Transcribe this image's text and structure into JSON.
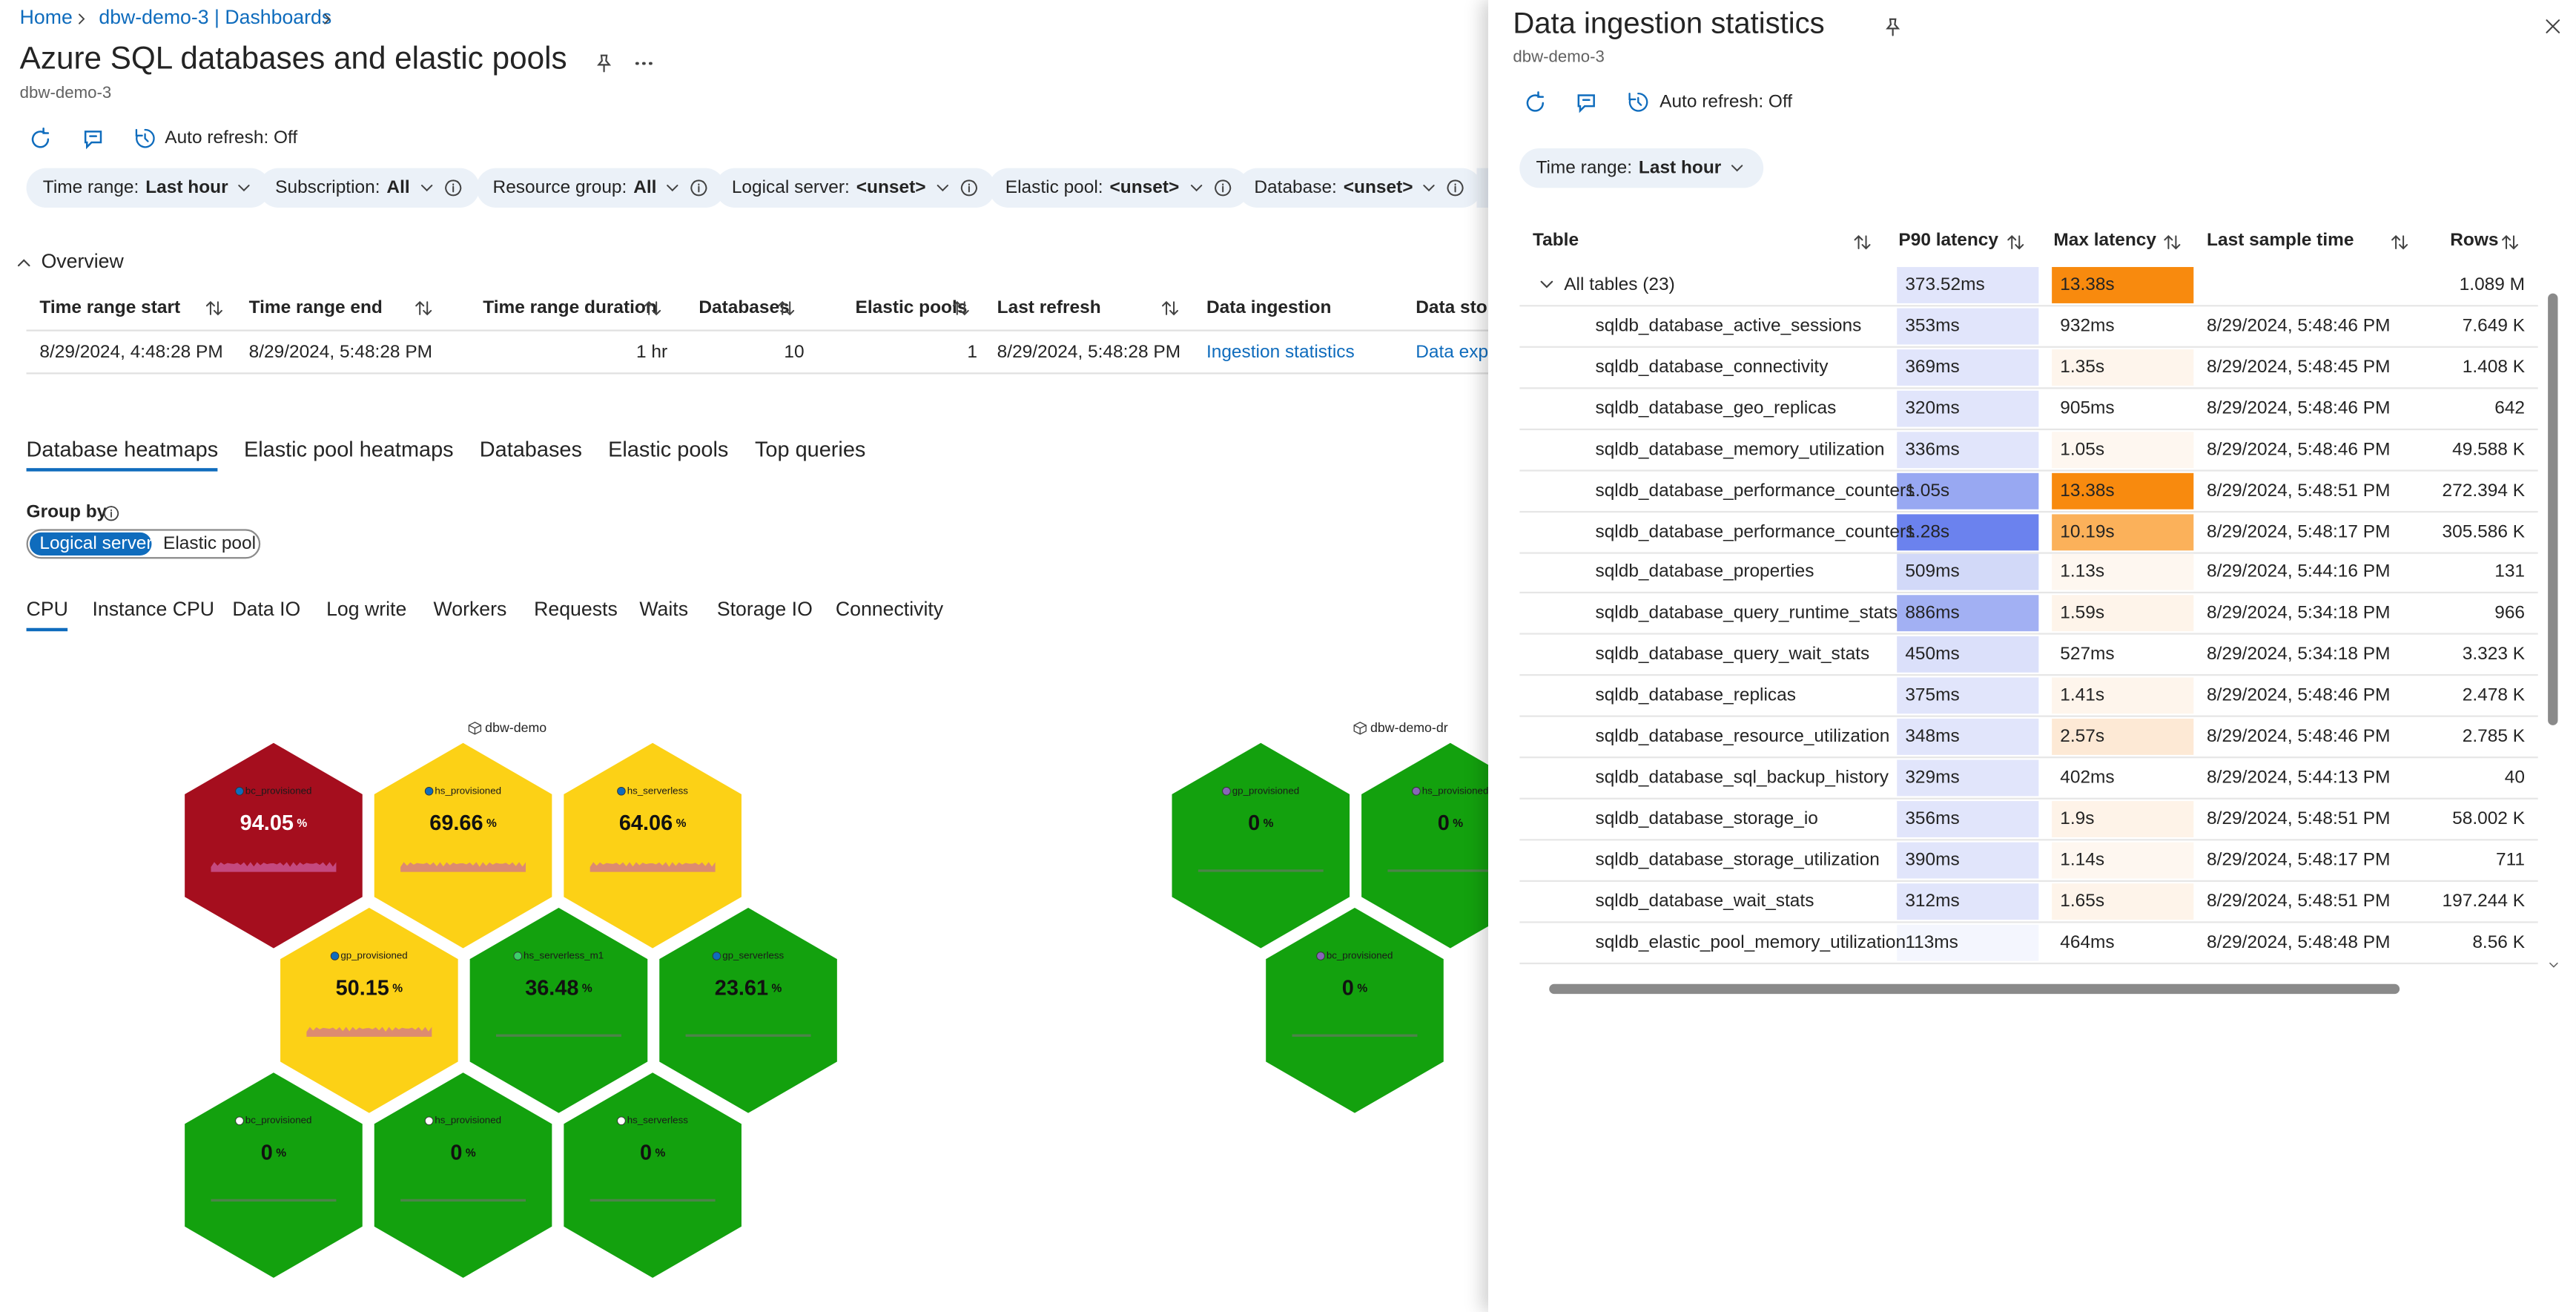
{
  "breadcrumb": [
    "Home",
    "dbw-demo-3 | Dashboards"
  ],
  "header": {
    "title": "Azure SQL databases and elastic pools",
    "subtitle": "dbw-demo-3"
  },
  "toolbar": {
    "auto_refresh": "Auto refresh: Off"
  },
  "filters": [
    {
      "label": "Time range:",
      "value": "Last hour"
    },
    {
      "label": "Subscription:",
      "value": "All"
    },
    {
      "label": "Resource group:",
      "value": "All"
    },
    {
      "label": "Logical server:",
      "value": "<unset>"
    },
    {
      "label": "Elastic pool:",
      "value": "<unset>"
    },
    {
      "label": "Database:",
      "value": "<unset>"
    }
  ],
  "overview": {
    "title": "Overview",
    "columns": [
      "Time range start",
      "Time range end",
      "Time range duration",
      "Databases",
      "Elastic pools",
      "Last refresh",
      "Data ingestion",
      "Data storage"
    ],
    "row": [
      "8/29/2024, 4:48:28 PM",
      "8/29/2024, 5:48:28 PM",
      "1 hr",
      10,
      1,
      "8/29/2024, 5:48:28 PM",
      "Ingestion statistics",
      "Data explorer"
    ]
  },
  "tabs": {
    "items": [
      "Database heatmaps",
      "Elastic pool heatmaps",
      "Databases",
      "Elastic pools",
      "Top queries"
    ],
    "selected": 0
  },
  "group_by": {
    "label": "Group by",
    "options": [
      "Logical server",
      "Elastic pool"
    ],
    "selected": 0
  },
  "metric_tabs": {
    "items": [
      "CPU",
      "Instance CPU",
      "Data IO",
      "Log write",
      "Workers",
      "Requests",
      "Waits",
      "Storage IO",
      "Connectivity"
    ],
    "selected": 0
  },
  "heatmaps": {
    "unit": "%",
    "servers": [
      {
        "name": "dbw-demo",
        "cells": [
          {
            "name": "bc_provisioned",
            "value": 94.05,
            "color": "#a50e1e",
            "dot": "#0f6cbd"
          },
          {
            "name": "hs_provisioned",
            "value": 69.66,
            "color": "#fcd116",
            "dot": "#0f6cbd"
          },
          {
            "name": "hs_serverless",
            "value": 64.06,
            "color": "#fcd116",
            "dot": "#0f6cbd"
          },
          {
            "name": "gp_provisioned",
            "value": 50.15,
            "color": "#fcd116",
            "dot": "#0f6cbd"
          },
          {
            "name": "hs_serverless_m1",
            "value": 36.48,
            "color": "#13a10e",
            "dot": "#3ccf6a"
          },
          {
            "name": "gp_serverless",
            "value": 23.61,
            "color": "#13a10e",
            "dot": "#0f6cbd"
          },
          {
            "name": "bc_provisioned",
            "value": 0,
            "color": "#13a10e",
            "dot": "#ffffff"
          },
          {
            "name": "hs_provisioned",
            "value": 0,
            "color": "#13a10e",
            "dot": "#ffffff"
          },
          {
            "name": "hs_serverless",
            "value": 0,
            "color": "#13a10e",
            "dot": "#ffffff"
          }
        ]
      },
      {
        "name": "dbw-demo-dr",
        "cells": [
          {
            "name": "gp_provisioned",
            "value": 0,
            "color": "#13a10e",
            "dot": "#8764b8"
          },
          {
            "name": "hs_provisioned",
            "value": 0,
            "color": "#13a10e",
            "dot": "#8764b8"
          },
          {
            "name": "bc_provisioned",
            "value": 0,
            "color": "#13a10e",
            "dot": "#8764b8"
          }
        ]
      }
    ]
  },
  "panel": {
    "title": "Data ingestion statistics",
    "subtitle": "dbw-demo-3",
    "auto_refresh": "Auto refresh: Off",
    "filter": {
      "label": "Time range:",
      "value": "Last hour"
    },
    "table": {
      "columns": [
        "Table",
        "P90 latency",
        "Max latency",
        "Last sample time",
        "Rows"
      ],
      "group": {
        "table": "All tables (23)",
        "p90": "373.52ms",
        "p90_color": "#e1e5fb",
        "max": "13.38s",
        "max_color": "#f88a0e",
        "rows": "1.089 M"
      },
      "rows": [
        {
          "table": "sqldb_database_active_sessions",
          "p90": "353ms",
          "p90_color": "#e1e5fb",
          "max": "932ms",
          "max_color": "#ffffff",
          "time": "8/29/2024, 5:48:46 PM",
          "rows": "7.649 K"
        },
        {
          "table": "sqldb_database_connectivity",
          "p90": "369ms",
          "p90_color": "#e1e5fb",
          "max": "1.35s",
          "max_color": "#fef5ec",
          "time": "8/29/2024, 5:48:45 PM",
          "rows": "1.408 K"
        },
        {
          "table": "sqldb_database_geo_replicas",
          "p90": "320ms",
          "p90_color": "#e1e5fb",
          "max": "905ms",
          "max_color": "#ffffff",
          "time": "8/29/2024, 5:48:46 PM",
          "rows": "642"
        },
        {
          "table": "sqldb_database_memory_utilization",
          "p90": "336ms",
          "p90_color": "#e1e5fb",
          "max": "1.05s",
          "max_color": "#fef7f0",
          "time": "8/29/2024, 5:48:46 PM",
          "rows": "49.588 K"
        },
        {
          "table": "sqldb_database_performance_counters",
          "p90": "1.05s",
          "p90_color": "#98a8f2",
          "max": "13.38s",
          "max_color": "#f88a0e",
          "time": "8/29/2024, 5:48:51 PM",
          "rows": "272.394 K"
        },
        {
          "table": "sqldb_database_performance_counters",
          "p90": "1.28s",
          "p90_color": "#6b82ee",
          "max": "10.19s",
          "max_color": "#fbb15a",
          "time": "8/29/2024, 5:48:17 PM",
          "rows": "305.586 K"
        },
        {
          "table": "sqldb_database_properties",
          "p90": "509ms",
          "p90_color": "#d2d9f8",
          "max": "1.13s",
          "max_color": "#fef7f0",
          "time": "8/29/2024, 5:44:16 PM",
          "rows": "131"
        },
        {
          "table": "sqldb_database_query_runtime_stats",
          "p90": "886ms",
          "p90_color": "#a2b0f3",
          "max": "1.59s",
          "max_color": "#fef4ea",
          "time": "8/29/2024, 5:34:18 PM",
          "rows": "966"
        },
        {
          "table": "sqldb_database_query_wait_stats",
          "p90": "450ms",
          "p90_color": "#dbe0fa",
          "max": "527ms",
          "max_color": "#ffffff",
          "time": "8/29/2024, 5:34:18 PM",
          "rows": "3.323 K"
        },
        {
          "table": "sqldb_database_replicas",
          "p90": "375ms",
          "p90_color": "#e1e5fb",
          "max": "1.41s",
          "max_color": "#fef5ec",
          "time": "8/29/2024, 5:48:46 PM",
          "rows": "2.478 K"
        },
        {
          "table": "sqldb_database_resource_utilization",
          "p90": "348ms",
          "p90_color": "#e1e5fb",
          "max": "2.57s",
          "max_color": "#fde9d5",
          "time": "8/29/2024, 5:48:46 PM",
          "rows": "2.785 K"
        },
        {
          "table": "sqldb_database_sql_backup_history",
          "p90": "329ms",
          "p90_color": "#e1e5fb",
          "max": "402ms",
          "max_color": "#ffffff",
          "time": "8/29/2024, 5:44:13 PM",
          "rows": "40"
        },
        {
          "table": "sqldb_database_storage_io",
          "p90": "356ms",
          "p90_color": "#e1e5fb",
          "max": "1.9s",
          "max_color": "#fef3e8",
          "time": "8/29/2024, 5:48:51 PM",
          "rows": "58.002 K"
        },
        {
          "table": "sqldb_database_storage_utilization",
          "p90": "390ms",
          "p90_color": "#e1e5fb",
          "max": "1.14s",
          "max_color": "#fef7f0",
          "time": "8/29/2024, 5:48:17 PM",
          "rows": "711"
        },
        {
          "table": "sqldb_database_wait_stats",
          "p90": "312ms",
          "p90_color": "#e1e5fb",
          "max": "1.65s",
          "max_color": "#fef4ea",
          "time": "8/29/2024, 5:48:51 PM",
          "rows": "197.244 K"
        },
        {
          "table": "sqldb_elastic_pool_memory_utilization",
          "p90": "113ms",
          "p90_color": "#f4f6fe",
          "max": "464ms",
          "max_color": "#ffffff",
          "time": "8/29/2024, 5:48:48 PM",
          "rows": "8.56 K"
        }
      ]
    }
  }
}
